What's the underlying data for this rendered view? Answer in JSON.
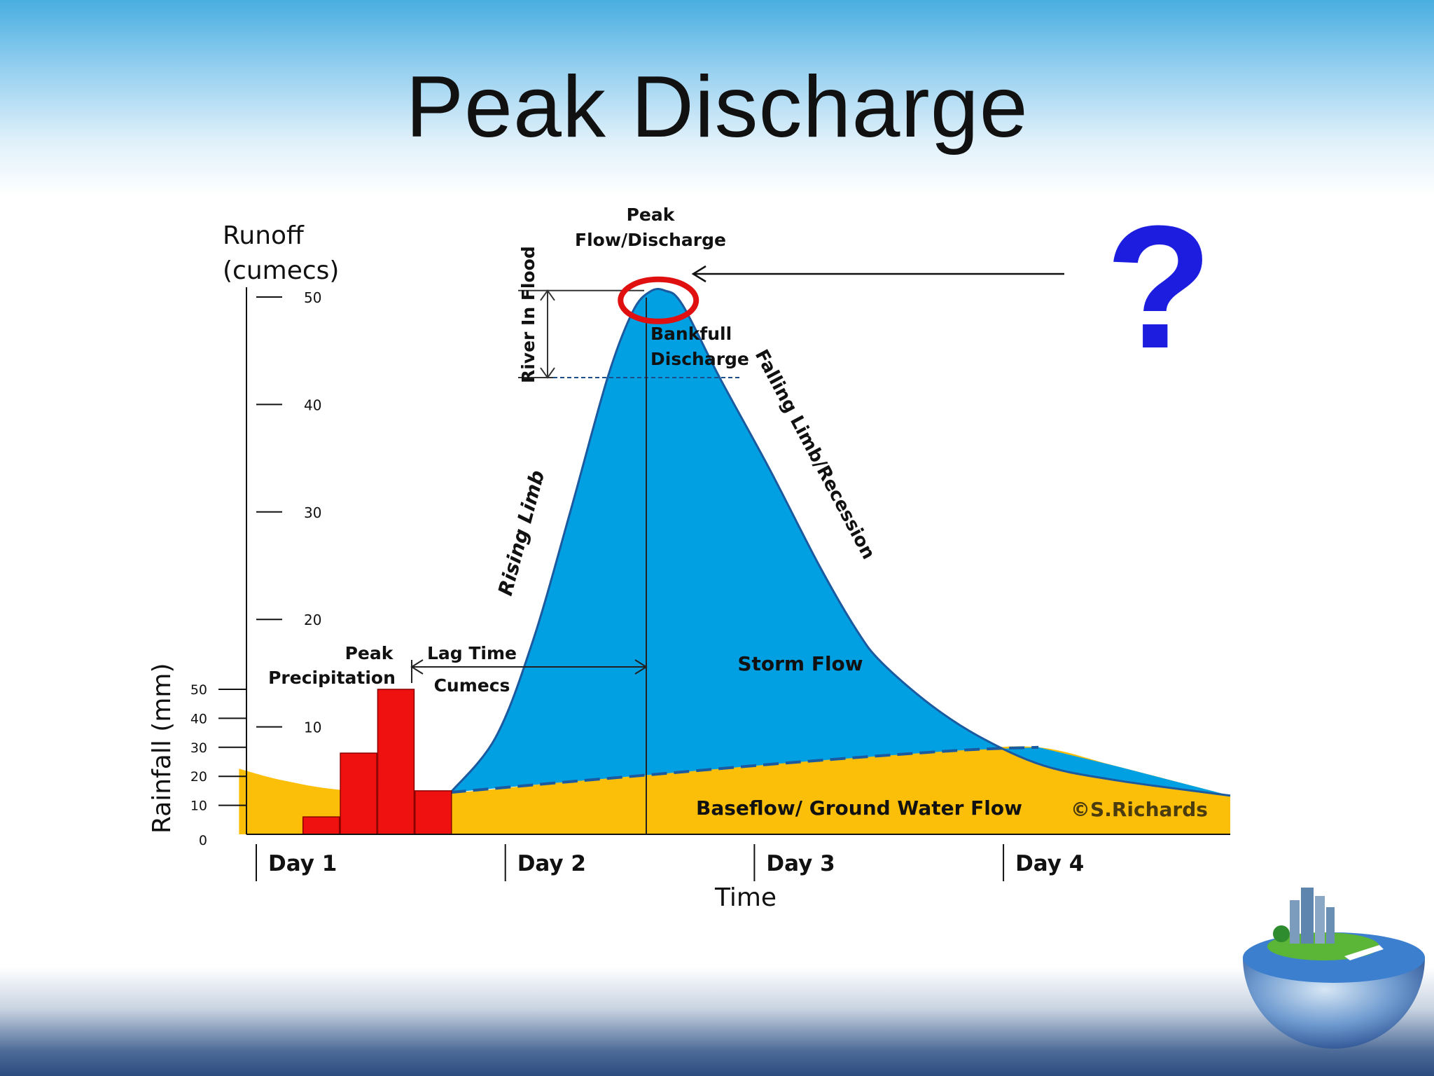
{
  "slide": {
    "title": "Peak Discharge",
    "question_mark": "?"
  },
  "colors": {
    "storm_flow": "#00a0e3",
    "baseflow": "#fbbf0a",
    "rainfall_bars": "#ef1010",
    "highlight_circle": "#e01010",
    "question_mark": "#1d1de0"
  },
  "chart_data": {
    "type": "area",
    "title": "",
    "runoff_axis": {
      "label_line1": "Runoff",
      "label_line2": "(cumecs)",
      "ticks": [
        10,
        20,
        30,
        40,
        50
      ],
      "range": [
        0,
        50
      ]
    },
    "rainfall_axis": {
      "label": "Rainfall (mm)",
      "ticks": [
        0,
        10,
        20,
        30,
        40,
        50
      ],
      "range": [
        0,
        50
      ]
    },
    "x_axis": {
      "label": "Time",
      "unit": "days",
      "ticks": [
        "Day 1",
        "Day 2",
        "Day 3",
        "Day 4"
      ],
      "range": [
        1,
        4.95
      ]
    },
    "rainfall": [
      {
        "day": 1.3,
        "mm": 6
      },
      {
        "day": 1.45,
        "mm": 28
      },
      {
        "day": 1.6,
        "mm": 50
      },
      {
        "day": 1.75,
        "mm": 15
      }
    ],
    "storm_hydrograph": [
      [
        1.82,
        3.9
      ],
      [
        2.0,
        9
      ],
      [
        2.15,
        18
      ],
      [
        2.3,
        30
      ],
      [
        2.45,
        42.5
      ],
      [
        2.55,
        48.6
      ],
      [
        2.62,
        50.5
      ],
      [
        2.68,
        50.6
      ],
      [
        2.75,
        49.3
      ],
      [
        2.9,
        42.5
      ],
      [
        3.1,
        34
      ],
      [
        3.3,
        25
      ],
      [
        3.45,
        19
      ],
      [
        3.55,
        16
      ],
      [
        3.75,
        12
      ],
      [
        3.95,
        9
      ],
      [
        4.2,
        6.4
      ],
      [
        4.5,
        5.0
      ],
      [
        4.95,
        3.6
      ]
    ],
    "baseflow": [
      [
        0.97,
        6.1
      ],
      [
        1.15,
        5.0
      ],
      [
        1.4,
        4.1
      ],
      [
        1.82,
        3.9
      ],
      [
        2.2,
        4.7
      ],
      [
        2.6,
        5.5
      ],
      [
        3.2,
        6.7
      ],
      [
        3.85,
        7.8
      ],
      [
        4.18,
        8.1
      ],
      [
        4.5,
        6.3
      ],
      [
        4.95,
        3.6
      ]
    ],
    "bankfull_level": 42.5,
    "peak": {
      "day": 2.62,
      "cumecs": 50.6
    },
    "annotations": {
      "peak_line1": "Peak",
      "peak_line2": "Flow/Discharge",
      "river_in_flood": "River In Flood",
      "bankfull_line1": "Bankfull",
      "bankfull_line2": "Discharge",
      "falling_limb": "Falling Limb/Recession",
      "rising_limb": "Rising Limb",
      "storm_flow": "Storm Flow",
      "lag_time": "Lag Time",
      "cumecs": "Cumecs",
      "peak_precip_line1": "Peak",
      "peak_precip_line2": "Precipitation",
      "baseflow": "Baseflow/ Ground Water Flow",
      "watermark": "©S.Richards"
    }
  }
}
